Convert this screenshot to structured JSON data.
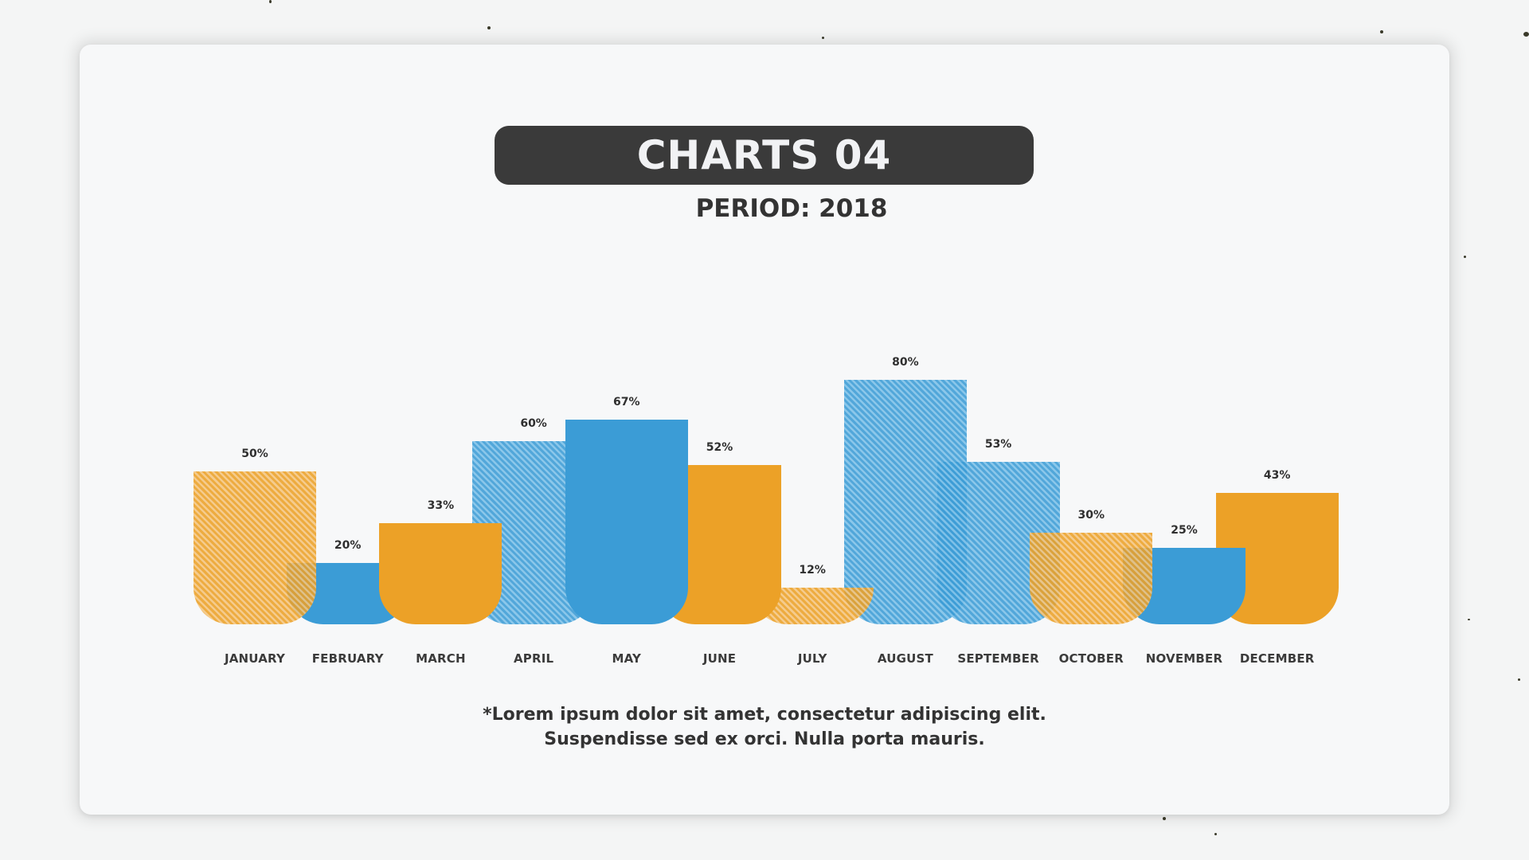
{
  "header": {
    "title": "CHARTS 04",
    "subtitle": "PERIOD: 2018"
  },
  "footnote": {
    "line1": "*Lorem ipsum dolor sit amet, consectetur adipiscing elit.",
    "line2": "Suspendisse sed ex orci. Nulla porta mauris."
  },
  "colors": {
    "blue": "#3b9cd6",
    "orange": "#eca127",
    "title_bg": "#3a3a3a",
    "card_bg": "#f7f8f9"
  },
  "chart_data": {
    "type": "bar",
    "title": "CHARTS 04",
    "subtitle": "PERIOD: 2018",
    "xlabel": "",
    "ylabel": "",
    "ylim": [
      0,
      100
    ],
    "grid": false,
    "legend": null,
    "categories": [
      "JANUARY",
      "FEBRUARY",
      "MARCH",
      "APRIL",
      "MAY",
      "JUNE",
      "JULY",
      "AUGUST",
      "SEPTEMBER",
      "OCTOBER",
      "NOVEMBER",
      "DECEMBER"
    ],
    "values": [
      50,
      20,
      33,
      60,
      67,
      52,
      12,
      80,
      53,
      30,
      25,
      43
    ],
    "value_labels": [
      "50%",
      "20%",
      "33%",
      "60%",
      "67%",
      "52%",
      "12%",
      "80%",
      "53%",
      "30%",
      "25%",
      "43%"
    ],
    "bar_styles": [
      "hatch-orange",
      "solid-blue",
      "solid-orange",
      "hatch-blue",
      "solid-blue",
      "solid-orange",
      "hatch-orange",
      "hatch-blue",
      "hatch-blue",
      "hatch-orange",
      "solid-blue",
      "solid-orange"
    ],
    "bar_z": [
      3,
      2,
      3,
      1,
      4,
      3,
      2,
      1,
      2,
      4,
      3,
      2
    ],
    "annotation": "*Lorem ipsum dolor sit amet, consectetur adipiscing elit. Suspendisse sed ex orci. Nulla porta mauris."
  }
}
